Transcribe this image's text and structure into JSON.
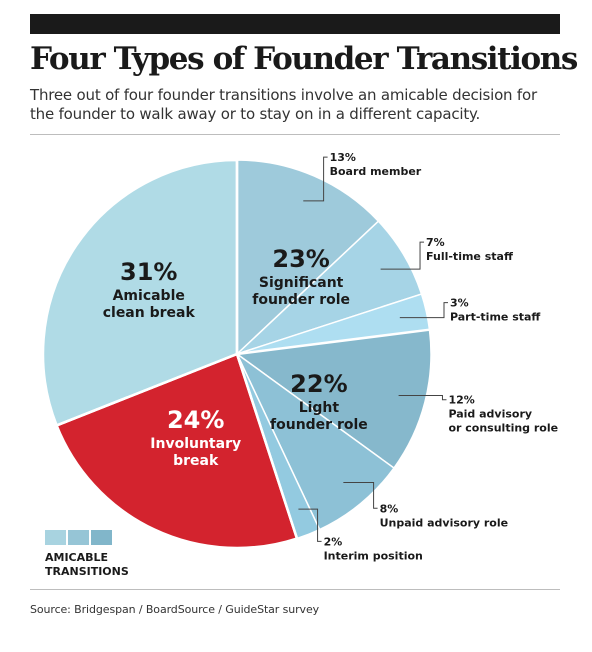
{
  "title": "Four Types of Founder Transitions",
  "subtitle": "Three out of four founder transitions involve an amicable decision for the founder to walk away or to stay on in a different capacity.",
  "source": "Source: Bridgespan / BoardSource / GuideStar survey",
  "legend": {
    "label_line1": "AMICABLE",
    "label_line2": "TRANSITIONS",
    "swatches": [
      "#a8d3e0",
      "#96c5d6",
      "#81b6ca"
    ]
  },
  "chart_data": {
    "type": "pie",
    "slices": [
      {
        "id": "significant",
        "value_label": "23%",
        "label_line1": "Significant",
        "label_line2": "founder role",
        "color": "#9ecadb",
        "sub": [
          {
            "value_label": "13%",
            "label_line1": "Board member",
            "label_line2": "",
            "value": 13
          },
          {
            "value_label": "7%",
            "label_line1": "Full-time staff",
            "label_line2": "",
            "value": 7
          },
          {
            "value_label": "3%",
            "label_line1": "Part-time staff",
            "label_line2": "",
            "value": 3
          }
        ]
      },
      {
        "id": "light",
        "value_label": "22%",
        "label_line1": "Light",
        "label_line2": "founder role",
        "color": "#86b8cc",
        "sub": [
          {
            "value_label": "12%",
            "label_line1": "Paid advisory",
            "label_line2": "or consulting role",
            "value": 12
          },
          {
            "value_label": "8%",
            "label_line1": "Unpaid advisory role",
            "label_line2": "",
            "value": 8
          },
          {
            "value_label": "2%",
            "label_line1": "Interim position",
            "label_line2": "",
            "value": 2
          }
        ]
      },
      {
        "id": "involuntary",
        "value_label": "24%",
        "label_line1": "Involuntary",
        "label_line2": "break",
        "color": "#d3232e",
        "sub": [
          {
            "value": 24
          }
        ]
      },
      {
        "id": "clean",
        "value_label": "31%",
        "label_line1": "Amicable",
        "label_line2": "clean break",
        "color": "#b0dbe6",
        "sub": [
          {
            "value": 31
          }
        ]
      }
    ]
  }
}
